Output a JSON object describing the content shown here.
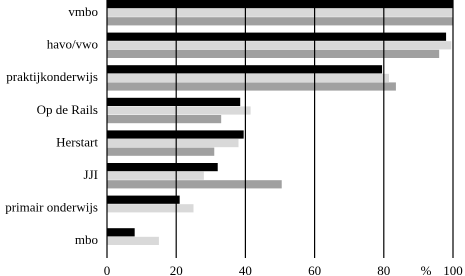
{
  "chart_data": {
    "type": "barh",
    "categories": [
      "vmbo",
      "havo/vwo",
      "praktijkonderwijs",
      "Op de Rails",
      "Herstart",
      "JJI",
      "primair onderwijs",
      "mbo"
    ],
    "series": [
      {
        "color": "#000000",
        "values": [
          100,
          98,
          79.5,
          38.5,
          39.5,
          32,
          21,
          8
        ]
      },
      {
        "color": "#d9d9d9",
        "values": [
          100,
          99.5,
          81.5,
          41.5,
          38,
          28,
          25,
          15
        ]
      },
      {
        "color": "#a0a0a0",
        "values": [
          100,
          96,
          83.5,
          33,
          31,
          50.5,
          null,
          null
        ]
      }
    ],
    "x_label": "%",
    "xlim": [
      0,
      100
    ],
    "xticks": [
      0,
      20,
      40,
      60,
      80,
      100
    ],
    "grid": true
  }
}
